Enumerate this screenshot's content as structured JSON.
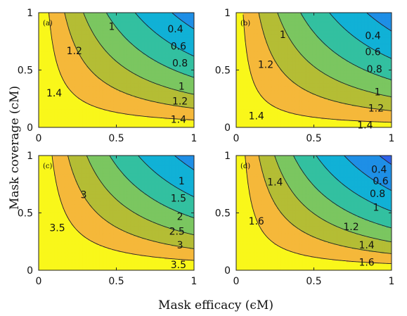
{
  "figure": {
    "xlabel": "Mask efficacy (ϵM)",
    "ylabel": "Mask coverage (cM)"
  },
  "chart_data": [
    {
      "type": "contour",
      "panel_label": "(a)",
      "xlabel": "Mask efficacy (ϵM)",
      "ylabel": "Mask coverage (cM)",
      "xlim": [
        0,
        1
      ],
      "ylim": [
        0,
        1
      ],
      "xticks": [
        "0",
        "0.5",
        "1"
      ],
      "yticks": [
        "0",
        "0.5",
        "1"
      ],
      "max_value": 1.55,
      "levels": [
        0.4,
        0.6,
        0.8,
        1,
        1.2,
        1.4
      ],
      "labels": [
        {
          "text": "0.4",
          "x": 0.88,
          "y": 0.86
        },
        {
          "text": "0.6",
          "x": 0.9,
          "y": 0.71
        },
        {
          "text": "0.8",
          "x": 0.91,
          "y": 0.56
        },
        {
          "text": "1",
          "x": 0.47,
          "y": 0.88
        },
        {
          "text": "1",
          "x": 0.92,
          "y": 0.36
        },
        {
          "text": "1.2",
          "x": 0.23,
          "y": 0.67
        },
        {
          "text": "1.2",
          "x": 0.91,
          "y": 0.23
        },
        {
          "text": "1.4",
          "x": 0.1,
          "y": 0.3
        },
        {
          "text": "1.4",
          "x": 0.9,
          "y": 0.07
        }
      ]
    },
    {
      "type": "contour",
      "panel_label": "(b)",
      "xlabel": "Mask efficacy (ϵM)",
      "ylabel": "Mask coverage (cM)",
      "xlim": [
        0,
        1
      ],
      "ylim": [
        0,
        1
      ],
      "xticks": [
        "0",
        "0.5",
        "1"
      ],
      "yticks": [
        "0",
        "0.5",
        "1"
      ],
      "max_value": 1.5,
      "levels": [
        0.4,
        0.6,
        0.8,
        1,
        1.2,
        1.4
      ],
      "labels": [
        {
          "text": "0.4",
          "x": 0.88,
          "y": 0.8
        },
        {
          "text": "0.6",
          "x": 0.88,
          "y": 0.66
        },
        {
          "text": "0.8",
          "x": 0.89,
          "y": 0.51
        },
        {
          "text": "1",
          "x": 0.3,
          "y": 0.81
        },
        {
          "text": "1",
          "x": 0.91,
          "y": 0.31
        },
        {
          "text": "1.2",
          "x": 0.19,
          "y": 0.55
        },
        {
          "text": "1.2",
          "x": 0.9,
          "y": 0.17
        },
        {
          "text": "1.4",
          "x": 0.13,
          "y": 0.1
        },
        {
          "text": "1.4",
          "x": 0.83,
          "y": 0.02
        }
      ]
    },
    {
      "type": "contour",
      "panel_label": "(c)",
      "xlabel": "Mask efficacy (ϵM)",
      "ylabel": "Mask coverage (cM)",
      "xlim": [
        0,
        1
      ],
      "ylim": [
        0,
        1
      ],
      "xticks": [
        "0",
        "0.5",
        "1"
      ],
      "yticks": [
        "0",
        "0.5",
        "1"
      ],
      "max_value": 4.0,
      "levels": [
        1,
        1.5,
        2,
        2.5,
        3,
        3.5
      ],
      "labels": [
        {
          "text": "1",
          "x": 0.92,
          "y": 0.78
        },
        {
          "text": "1.5",
          "x": 0.9,
          "y": 0.63
        },
        {
          "text": "2",
          "x": 0.91,
          "y": 0.47
        },
        {
          "text": "2.5",
          "x": 0.89,
          "y": 0.34
        },
        {
          "text": "3",
          "x": 0.29,
          "y": 0.66
        },
        {
          "text": "3",
          "x": 0.91,
          "y": 0.22
        },
        {
          "text": "3.5",
          "x": 0.12,
          "y": 0.37
        },
        {
          "text": "3.5",
          "x": 0.9,
          "y": 0.05
        }
      ]
    },
    {
      "type": "contour",
      "panel_label": "(d)",
      "xlabel": "Mask efficacy (ϵM)",
      "ylabel": "Mask coverage (cM)",
      "xlim": [
        0,
        1
      ],
      "ylim": [
        0,
        1
      ],
      "xticks": [
        "0",
        "0.5",
        "1"
      ],
      "yticks": [
        "0",
        "0.5",
        "1"
      ],
      "max_value": 1.75,
      "levels": [
        0.4,
        0.6,
        0.8,
        1,
        1.2,
        1.4,
        1.6
      ],
      "labels": [
        {
          "text": "0.4",
          "x": 0.92,
          "y": 0.88
        },
        {
          "text": "0.6",
          "x": 0.93,
          "y": 0.78
        },
        {
          "text": "0.8",
          "x": 0.91,
          "y": 0.67
        },
        {
          "text": "1",
          "x": 0.9,
          "y": 0.55
        },
        {
          "text": "1.2",
          "x": 0.74,
          "y": 0.38
        },
        {
          "text": "1.4",
          "x": 0.25,
          "y": 0.77
        },
        {
          "text": "1.4",
          "x": 0.84,
          "y": 0.22
        },
        {
          "text": "1.6",
          "x": 0.13,
          "y": 0.43
        },
        {
          "text": "1.6",
          "x": 0.84,
          "y": 0.07
        }
      ]
    }
  ],
  "colors": {
    "bands": [
      "#3b2ec6",
      "#2f62ea",
      "#1e8fe6",
      "#11b1d6",
      "#33c0a0",
      "#7bc660",
      "#b4bd35",
      "#f5b83a",
      "#f9f71a"
    ],
    "axis": "#222222",
    "contour_line": "#222222"
  }
}
